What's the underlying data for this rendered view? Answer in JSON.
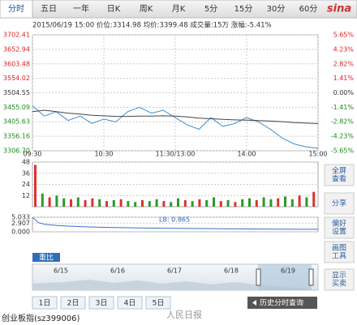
{
  "tabs": [
    "分时",
    "五日",
    "一年",
    "日K",
    "周K",
    "月K",
    "5分",
    "15分",
    "30分",
    "60分"
  ],
  "logo": "sina",
  "info": "2015/06/19 15:00  价位:3314.98  均价:3399.48  成交量:15万  涨幅:-5.41%",
  "chart_data": [
    {
      "type": "line",
      "x": [
        0,
        10,
        20,
        30,
        40,
        50,
        60,
        70,
        80,
        90,
        100,
        110,
        120,
        130,
        140,
        150,
        160,
        170,
        180,
        190,
        200,
        210,
        220,
        230,
        240
      ],
      "series": [
        {
          "color": "#3b8fd4",
          "values": [
            3460,
            3425,
            3440,
            3410,
            3425,
            3400,
            3415,
            3405,
            3440,
            3455,
            3435,
            3445,
            3420,
            3395,
            3380,
            3420,
            3390,
            3400,
            3420,
            3405,
            3380,
            3350,
            3330,
            3320,
            3314.98
          ]
        },
        {
          "color": "#444444",
          "values": [
            3440,
            3445,
            3440,
            3435,
            3432,
            3428,
            3426,
            3424,
            3424,
            3425,
            3425,
            3426,
            3425,
            3422,
            3418,
            3416,
            3414,
            3412,
            3411,
            3410,
            3408,
            3406,
            3403,
            3401,
            3399.48
          ]
        }
      ],
      "xlim": [
        0,
        240
      ],
      "xticks": [
        {
          "value": 0,
          "label": "09:30"
        },
        {
          "value": 60,
          "label": "10:30"
        },
        {
          "value": 120,
          "label": "11:30/13:00"
        },
        {
          "value": 180,
          "label": "14:00"
        },
        {
          "value": 240,
          "label": "15:00"
        }
      ],
      "ylim": [
        3306.7,
        3702.41
      ],
      "yticks": [
        3702.41,
        3652.94,
        3603.48,
        3554.02,
        3504.55,
        3455.09,
        3405.63,
        3356.16,
        {
          "value": 3306.7,
          "label": "3306.70"
        }
      ],
      "y2lim": [
        -5.65,
        5.65
      ],
      "y2ticks": [
        {
          "value": 5.65,
          "label": "5.65%"
        },
        {
          "value": 4.23,
          "label": "4.23%"
        },
        {
          "value": 2.82,
          "label": "2.82%"
        },
        {
          "value": 1.41,
          "label": "1.41%"
        },
        {
          "value": 0,
          "label": "0.00%"
        },
        {
          "value": -1.41,
          "label": "-1.41%"
        },
        {
          "value": -2.82,
          "label": "-2.82%"
        },
        {
          "value": -4.23,
          "label": "-4.23%"
        },
        {
          "value": -5.65,
          "label": "-5.65%"
        }
      ],
      "grid": true
    },
    {
      "type": "bar",
      "xlim": [
        0,
        240
      ],
      "x": [
        0,
        6,
        12,
        18,
        24,
        30,
        36,
        42,
        48,
        54,
        60,
        66,
        72,
        78,
        84,
        90,
        96,
        102,
        108,
        114,
        120,
        126,
        132,
        138,
        144,
        150,
        156,
        162,
        168,
        174,
        180,
        186,
        192,
        198,
        204,
        210,
        216,
        222,
        228,
        234
      ],
      "values": [
        45,
        14,
        10,
        12,
        9,
        8,
        10,
        7,
        9,
        8,
        6,
        7,
        8,
        6,
        5,
        7,
        6,
        8,
        6,
        5,
        9,
        7,
        6,
        8,
        7,
        10,
        6,
        7,
        5,
        8,
        9,
        7,
        10,
        8,
        9,
        11,
        8,
        12,
        10,
        16
      ],
      "bar_colors": [
        "#e03030",
        "#2a9a2a",
        "#e03030",
        "#2a9a2a",
        "#2a9a2a",
        "#e03030",
        "#2a9a2a",
        "#e03030",
        "#e03030",
        "#2a9a2a",
        "#e03030",
        "#2a9a2a",
        "#e03030",
        "#2a9a2a",
        "#2a9a2a",
        "#e03030",
        "#2a9a2a",
        "#2a9a2a",
        "#e03030",
        "#2a9a2a",
        "#2a9a2a",
        "#e03030",
        "#2a9a2a",
        "#e03030",
        "#2a9a2a",
        "#2a9a2a",
        "#e03030",
        "#2a9a2a",
        "#e03030",
        "#2a9a2a",
        "#2a9a2a",
        "#e03030",
        "#2a9a2a",
        "#2a9a2a",
        "#e03030",
        "#2a9a2a",
        "#2a9a2a",
        "#e03030",
        "#2a9a2a",
        "#e03030"
      ],
      "ylim": [
        0,
        48
      ],
      "yticks": [
        12,
        24,
        36,
        48
      ],
      "grid": true
    },
    {
      "type": "line",
      "label": "LB: 0.865",
      "xlim": [
        0,
        240
      ],
      "x": [
        0,
        5,
        10,
        20,
        30,
        45,
        60,
        90,
        120,
        150,
        180,
        210,
        240
      ],
      "series": [
        {
          "color": "#3b6fc4",
          "values": [
            5.0,
            3.2,
            2.6,
            2.2,
            1.95,
            1.7,
            1.55,
            1.35,
            1.2,
            1.08,
            0.98,
            0.92,
            0.865
          ]
        }
      ],
      "ylim": [
        0,
        5.033
      ],
      "yticks": [
        5.033,
        2.907,
        {
          "value": 0,
          "label": "0.000"
        }
      ],
      "grid": true
    }
  ],
  "side_buttons": [
    [
      "全屏",
      "查看"
    ],
    [
      "分享"
    ],
    [
      "偏好",
      "设置"
    ],
    [
      "画图",
      "工具"
    ],
    [
      "显示",
      "买卖"
    ]
  ],
  "navigator": {
    "button": "重比",
    "dates": [
      "6/15",
      "6/16",
      "6/17",
      "6/18",
      "6/19"
    ]
  },
  "day_tabs": [
    "1日",
    "2日",
    "3日",
    "4日",
    "5日"
  ],
  "history_button": "历史分时查询",
  "footer": "创业板指(sz399006)",
  "watermark": "人民日报"
}
